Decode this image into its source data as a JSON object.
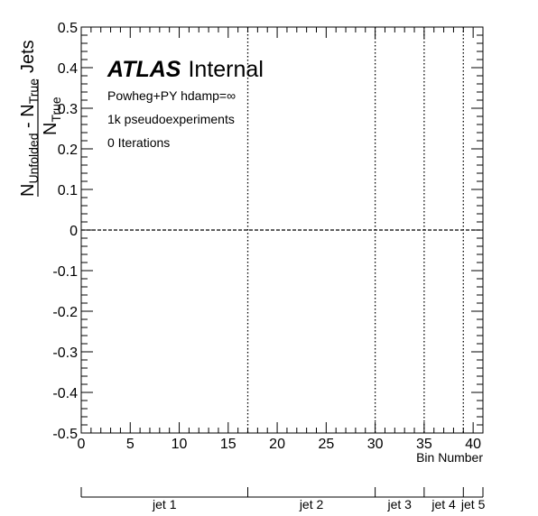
{
  "chart_data": {
    "type": "line",
    "xlabel": "Bin Number",
    "ylabel": {
      "numerator_main": "N",
      "numerator_sub1": "Unfolded",
      "numerator_mid": " - N",
      "numerator_sub2": "True",
      "denominator_main": "N",
      "denominator_sub": "True",
      "suffix": "Jets"
    },
    "xlim": [
      0,
      41
    ],
    "ylim": [
      -0.5,
      0.5
    ],
    "x_ticks": [
      0,
      5,
      10,
      15,
      20,
      25,
      30,
      35,
      40
    ],
    "x_tick_labels": [
      "0",
      "5",
      "10",
      "15",
      "20",
      "25",
      "30",
      "35",
      "40"
    ],
    "y_ticks": [
      -0.5,
      -0.4,
      -0.3,
      -0.2,
      -0.1,
      0,
      0.1,
      0.2,
      0.3,
      0.4,
      0.5
    ],
    "y_tick_labels": [
      "-0.5",
      "-0.4",
      "-0.3",
      "-0.2",
      "-0.1",
      "0",
      "0.1",
      "0.2",
      "0.3",
      "0.4",
      "0.5"
    ],
    "series": [
      {
        "x": [
          0,
          41
        ],
        "y": [
          0,
          0
        ],
        "style": "dashed",
        "color": "#000000"
      }
    ],
    "vertical_lines": [
      17,
      30,
      35,
      39
    ],
    "atlas_label": {
      "bold": "ATLAS",
      "normal": "Internal"
    },
    "annotations": [
      "Powheg+PY hdamp=∞",
      "1k pseudoexperiments",
      "0 Iterations"
    ],
    "secondary_axis": {
      "boundaries": [
        0,
        17,
        30,
        35,
        39,
        41
      ],
      "labels": [
        "jet 1",
        "jet 2",
        "jet 3",
        "jet 4",
        "jet 5"
      ]
    },
    "grid": false,
    "legend": "none"
  }
}
